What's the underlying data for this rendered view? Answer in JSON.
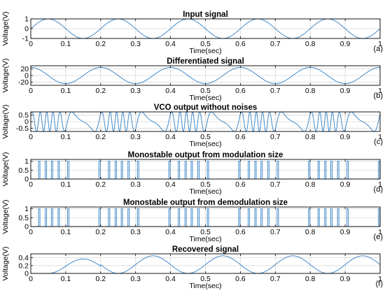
{
  "figure": {
    "line_color": "#2e7fc6",
    "grid_color": "#d9d9d9",
    "axis_color": "#000000",
    "xticks": [
      0,
      0.1,
      0.2,
      0.3,
      0.4,
      0.5,
      0.6,
      0.7,
      0.8,
      0.9,
      1
    ],
    "xlim": [
      0,
      1
    ],
    "grid": true
  },
  "chart_data": [
    {
      "type": "line",
      "title": "Input signal",
      "xlabel": "Time(sec)",
      "ylabel": "Voltage(V)",
      "panel_label": "(a)",
      "ylim": [
        -1,
        1
      ],
      "yticks": [
        -1,
        0,
        1
      ],
      "signal": {
        "kind": "sine",
        "amplitude": 1,
        "frequency_hz": 5,
        "phase": 0
      }
    },
    {
      "type": "line",
      "title": "Differentiated signal",
      "xlabel": "Time(sec)",
      "ylabel": "Voltage(V)",
      "panel_label": "(b)",
      "ylim": [
        -30,
        30
      ],
      "yticks": [
        -20,
        0,
        20
      ],
      "signal": {
        "kind": "cosine",
        "amplitude": 25,
        "frequency_hz": 5,
        "phase": 0
      }
    },
    {
      "type": "line",
      "title": "VCO output without noises",
      "xlabel": "Time(sec)",
      "ylabel": "Voltage(V)",
      "panel_label": "(c)",
      "ylim": [
        -0.75,
        0.75
      ],
      "yticks": [
        -0.5,
        0,
        0.5
      ],
      "signal": {
        "kind": "fm",
        "amplitude": 0.75,
        "carrier_hz": 30,
        "deviation_hz": 27,
        "modulation_hz": 5
      }
    },
    {
      "type": "line",
      "title": "Monostable output from modulation size",
      "xlabel": "Time(sec)",
      "ylabel": "Voltage(V)",
      "panel_label": "(d)",
      "ylim": [
        0,
        1.1
      ],
      "yticks": [
        0,
        0.5,
        1
      ],
      "signal": {
        "kind": "pulses",
        "amplitude": 1,
        "carrier_hz": 30,
        "deviation_hz": 27,
        "modulation_hz": 5,
        "pulse_width_s": 0.004
      }
    },
    {
      "type": "line",
      "title": "Monostable output from demodulation size",
      "xlabel": "Time(sec)",
      "ylabel": "Voltage(V)",
      "panel_label": "(e)",
      "ylim": [
        0,
        1.1
      ],
      "yticks": [
        0,
        0.5,
        1
      ],
      "signal": {
        "kind": "pulses",
        "amplitude": 1,
        "carrier_hz": 30,
        "deviation_hz": 27,
        "modulation_hz": 5,
        "pulse_width_s": 0.004
      }
    },
    {
      "type": "line",
      "title": "Recovered signal",
      "xlabel": "Time(sec)",
      "ylabel": "Voltage(V)",
      "panel_label": "(f)",
      "ylim": [
        0,
        0.5
      ],
      "yticks": [
        0,
        0.2,
        0.4
      ],
      "signal": {
        "kind": "recovered",
        "amplitude": 0.45,
        "offset": 0.225,
        "frequency_hz": 5,
        "delay_s": 0.05,
        "first_peak": 0.37
      }
    }
  ]
}
